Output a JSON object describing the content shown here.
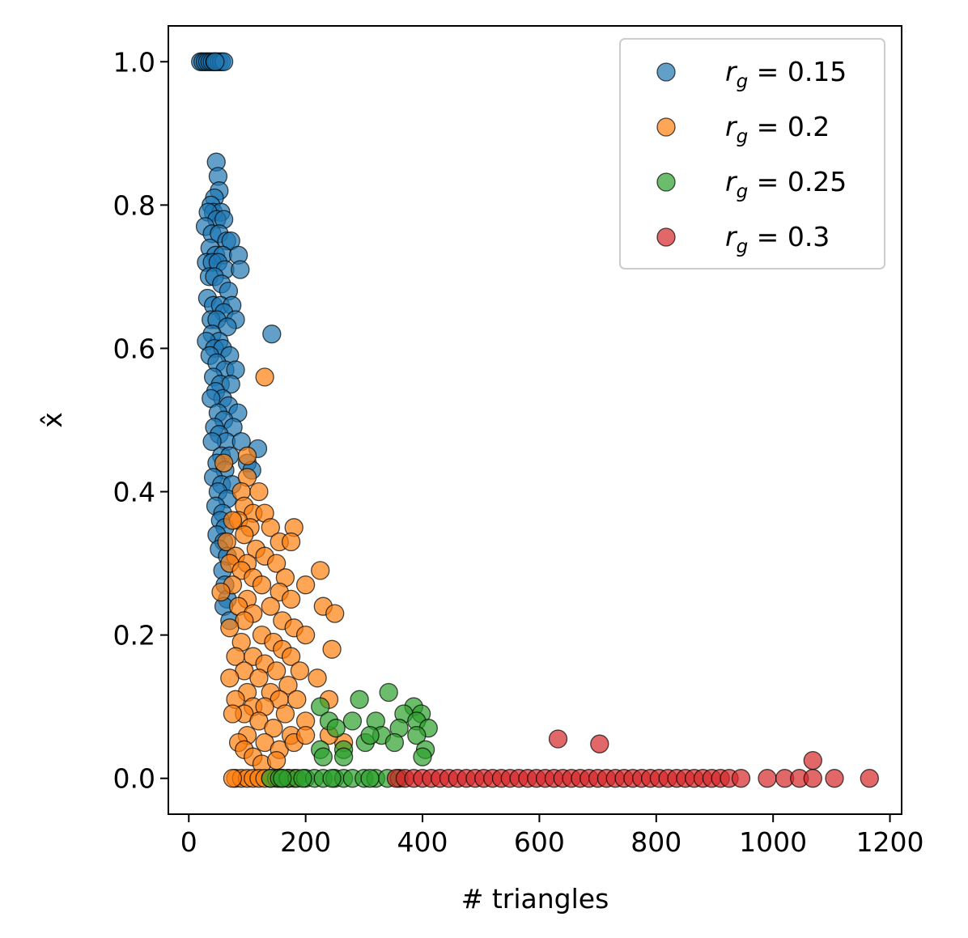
{
  "chart_data": {
    "type": "scatter",
    "xlabel": "# triangles",
    "ylabel": "x̂",
    "xlim": [
      -35,
      1220
    ],
    "ylim": [
      -0.05,
      1.05
    ],
    "xticks": [
      "0",
      "200",
      "400",
      "600",
      "800",
      "1000",
      "1200"
    ],
    "yticks": [
      "0.0",
      "0.2",
      "0.4",
      "0.6",
      "0.8",
      "1.0"
    ],
    "grid": false,
    "legend_position": "top-right",
    "series": [
      {
        "name": "r_g = 0.15",
        "label_parts": {
          "var": "r",
          "sub": "g",
          "rest": " = 0.15"
        },
        "color": "#1f77b4",
        "points": [
          [
            20,
            1.0
          ],
          [
            24,
            1.0
          ],
          [
            28,
            1.0
          ],
          [
            32,
            1.0
          ],
          [
            36,
            1.0
          ],
          [
            40,
            1.0
          ],
          [
            44,
            1.0
          ],
          [
            48,
            1.0
          ],
          [
            52,
            1.0
          ],
          [
            56,
            1.0
          ],
          [
            60,
            1.0
          ],
          [
            45,
            1.0
          ],
          [
            47,
            0.86
          ],
          [
            50,
            0.84
          ],
          [
            52,
            0.82
          ],
          [
            44,
            0.81
          ],
          [
            38,
            0.8
          ],
          [
            42,
            0.79
          ],
          [
            55,
            0.79
          ],
          [
            33,
            0.79
          ],
          [
            48,
            0.78
          ],
          [
            60,
            0.78
          ],
          [
            28,
            0.77
          ],
          [
            40,
            0.76
          ],
          [
            52,
            0.76
          ],
          [
            65,
            0.75
          ],
          [
            72,
            0.75
          ],
          [
            36,
            0.74
          ],
          [
            46,
            0.73
          ],
          [
            58,
            0.73
          ],
          [
            85,
            0.73
          ],
          [
            30,
            0.72
          ],
          [
            40,
            0.72
          ],
          [
            50,
            0.72
          ],
          [
            62,
            0.71
          ],
          [
            88,
            0.71
          ],
          [
            35,
            0.7
          ],
          [
            44,
            0.7
          ],
          [
            56,
            0.69
          ],
          [
            68,
            0.68
          ],
          [
            32,
            0.67
          ],
          [
            42,
            0.66
          ],
          [
            54,
            0.66
          ],
          [
            74,
            0.66
          ],
          [
            60,
            0.65
          ],
          [
            38,
            0.64
          ],
          [
            48,
            0.64
          ],
          [
            80,
            0.64
          ],
          [
            66,
            0.63
          ],
          [
            40,
            0.62
          ],
          [
            52,
            0.61
          ],
          [
            142,
            0.62
          ],
          [
            30,
            0.61
          ],
          [
            44,
            0.6
          ],
          [
            58,
            0.6
          ],
          [
            70,
            0.59
          ],
          [
            36,
            0.59
          ],
          [
            48,
            0.58
          ],
          [
            62,
            0.57
          ],
          [
            80,
            0.57
          ],
          [
            42,
            0.56
          ],
          [
            54,
            0.55
          ],
          [
            72,
            0.55
          ],
          [
            46,
            0.54
          ],
          [
            58,
            0.53
          ],
          [
            38,
            0.53
          ],
          [
            68,
            0.52
          ],
          [
            50,
            0.51
          ],
          [
            84,
            0.51
          ],
          [
            60,
            0.5
          ],
          [
            44,
            0.49
          ],
          [
            76,
            0.49
          ],
          [
            52,
            0.48
          ],
          [
            64,
            0.47
          ],
          [
            40,
            0.47
          ],
          [
            90,
            0.47
          ],
          [
            118,
            0.46
          ],
          [
            56,
            0.45
          ],
          [
            70,
            0.45
          ],
          [
            100,
            0.44
          ],
          [
            48,
            0.44
          ],
          [
            62,
            0.43
          ],
          [
            108,
            0.43
          ],
          [
            42,
            0.42
          ],
          [
            56,
            0.41
          ],
          [
            74,
            0.41
          ],
          [
            50,
            0.4
          ],
          [
            66,
            0.39
          ],
          [
            46,
            0.38
          ],
          [
            58,
            0.37
          ],
          [
            54,
            0.36
          ],
          [
            62,
            0.35
          ],
          [
            48,
            0.34
          ],
          [
            60,
            0.33
          ],
          [
            52,
            0.32
          ],
          [
            66,
            0.31
          ],
          [
            58,
            0.29
          ],
          [
            62,
            0.27
          ],
          [
            66,
            0.25
          ],
          [
            60,
            0.24
          ],
          [
            70,
            0.22
          ]
        ]
      },
      {
        "name": "r_g = 0.2",
        "label_parts": {
          "var": "r",
          "sub": "g",
          "rest": " = 0.2"
        },
        "color": "#ff7f0e",
        "points": [
          [
            130,
            0.56
          ],
          [
            100,
            0.45
          ],
          [
            60,
            0.44
          ],
          [
            100,
            0.42
          ],
          [
            90,
            0.4
          ],
          [
            120,
            0.4
          ],
          [
            95,
            0.38
          ],
          [
            110,
            0.37
          ],
          [
            130,
            0.37
          ],
          [
            85,
            0.36
          ],
          [
            75,
            0.36
          ],
          [
            105,
            0.35
          ],
          [
            140,
            0.35
          ],
          [
            180,
            0.35
          ],
          [
            65,
            0.33
          ],
          [
            95,
            0.34
          ],
          [
            155,
            0.33
          ],
          [
            175,
            0.33
          ],
          [
            115,
            0.32
          ],
          [
            80,
            0.31
          ],
          [
            130,
            0.31
          ],
          [
            100,
            0.3
          ],
          [
            70,
            0.3
          ],
          [
            150,
            0.3
          ],
          [
            90,
            0.29
          ],
          [
            110,
            0.28
          ],
          [
            165,
            0.28
          ],
          [
            225,
            0.29
          ],
          [
            200,
            0.27
          ],
          [
            75,
            0.27
          ],
          [
            125,
            0.27
          ],
          [
            155,
            0.26
          ],
          [
            55,
            0.26
          ],
          [
            100,
            0.25
          ],
          [
            175,
            0.25
          ],
          [
            85,
            0.24
          ],
          [
            140,
            0.24
          ],
          [
            230,
            0.24
          ],
          [
            110,
            0.23
          ],
          [
            95,
            0.22
          ],
          [
            160,
            0.22
          ],
          [
            250,
            0.23
          ],
          [
            70,
            0.21
          ],
          [
            125,
            0.2
          ],
          [
            180,
            0.21
          ],
          [
            200,
            0.2
          ],
          [
            90,
            0.19
          ],
          [
            145,
            0.19
          ],
          [
            160,
            0.18
          ],
          [
            80,
            0.17
          ],
          [
            110,
            0.17
          ],
          [
            175,
            0.17
          ],
          [
            245,
            0.18
          ],
          [
            130,
            0.16
          ],
          [
            95,
            0.15
          ],
          [
            150,
            0.15
          ],
          [
            190,
            0.15
          ],
          [
            220,
            0.14
          ],
          [
            70,
            0.14
          ],
          [
            120,
            0.14
          ],
          [
            170,
            0.13
          ],
          [
            100,
            0.12
          ],
          [
            140,
            0.12
          ],
          [
            80,
            0.11
          ],
          [
            155,
            0.11
          ],
          [
            185,
            0.11
          ],
          [
            240,
            0.11
          ],
          [
            110,
            0.1
          ],
          [
            130,
            0.1
          ],
          [
            95,
            0.09
          ],
          [
            165,
            0.09
          ],
          [
            200,
            0.08
          ],
          [
            75,
            0.09
          ],
          [
            120,
            0.08
          ],
          [
            145,
            0.07
          ],
          [
            100,
            0.06
          ],
          [
            175,
            0.06
          ],
          [
            85,
            0.05
          ],
          [
            130,
            0.05
          ],
          [
            155,
            0.04
          ],
          [
            95,
            0.04
          ],
          [
            110,
            0.03
          ],
          [
            125,
            0.02
          ],
          [
            150,
            0.025
          ],
          [
            180,
            0.05
          ],
          [
            200,
            0.06
          ],
          [
            265,
            0.05
          ],
          [
            240,
            0.06
          ],
          [
            80,
            0.0
          ],
          [
            90,
            0.0
          ],
          [
            100,
            0.0
          ],
          [
            110,
            0.0
          ],
          [
            120,
            0.0
          ],
          [
            130,
            0.0
          ],
          [
            140,
            0.0
          ],
          [
            150,
            0.0
          ],
          [
            160,
            0.0
          ],
          [
            75,
            0.0
          ],
          [
            170,
            0.0
          ],
          [
            180,
            0.0
          ]
        ]
      },
      {
        "name": "r_g = 0.25",
        "label_parts": {
          "var": "r",
          "sub": "g",
          "rest": " = 0.25"
        },
        "color": "#2ca02c",
        "points": [
          [
            342,
            0.12
          ],
          [
            292,
            0.11
          ],
          [
            385,
            0.1
          ],
          [
            368,
            0.09
          ],
          [
            398,
            0.09
          ],
          [
            225,
            0.1
          ],
          [
            390,
            0.08
          ],
          [
            280,
            0.08
          ],
          [
            320,
            0.08
          ],
          [
            240,
            0.08
          ],
          [
            360,
            0.07
          ],
          [
            410,
            0.07
          ],
          [
            252,
            0.07
          ],
          [
            330,
            0.06
          ],
          [
            390,
            0.06
          ],
          [
            302,
            0.05
          ],
          [
            225,
            0.04
          ],
          [
            352,
            0.05
          ],
          [
            265,
            0.04
          ],
          [
            405,
            0.04
          ],
          [
            230,
            0.03
          ],
          [
            310,
            0.06
          ],
          [
            265,
            0.03
          ],
          [
            400,
            0.03
          ],
          [
            140,
            0.0
          ],
          [
            155,
            0.0
          ],
          [
            170,
            0.0
          ],
          [
            185,
            0.0
          ],
          [
            200,
            0.0
          ],
          [
            215,
            0.0
          ],
          [
            230,
            0.0
          ],
          [
            250,
            0.0
          ],
          [
            265,
            0.0
          ],
          [
            280,
            0.0
          ],
          [
            300,
            0.0
          ],
          [
            320,
            0.0
          ],
          [
            340,
            0.0
          ],
          [
            360,
            0.0
          ],
          [
            160,
            0.0
          ],
          [
            195,
            0.0
          ],
          [
            245,
            0.0
          ],
          [
            310,
            0.0
          ]
        ]
      },
      {
        "name": "r_g = 0.3",
        "label_parts": {
          "var": "r",
          "sub": "g",
          "rest": " = 0.3"
        },
        "color": "#d62728",
        "points": [
          [
            632,
            0.055
          ],
          [
            703,
            0.048
          ],
          [
            1068,
            0.025
          ],
          [
            355,
            0.0
          ],
          [
            370,
            0.0
          ],
          [
            385,
            0.0
          ],
          [
            400,
            0.0
          ],
          [
            415,
            0.0
          ],
          [
            430,
            0.0
          ],
          [
            445,
            0.0
          ],
          [
            460,
            0.0
          ],
          [
            475,
            0.0
          ],
          [
            490,
            0.0
          ],
          [
            505,
            0.0
          ],
          [
            520,
            0.0
          ],
          [
            535,
            0.0
          ],
          [
            550,
            0.0
          ],
          [
            565,
            0.0
          ],
          [
            580,
            0.0
          ],
          [
            595,
            0.0
          ],
          [
            610,
            0.0
          ],
          [
            625,
            0.0
          ],
          [
            640,
            0.0
          ],
          [
            655,
            0.0
          ],
          [
            670,
            0.0
          ],
          [
            685,
            0.0
          ],
          [
            700,
            0.0
          ],
          [
            715,
            0.0
          ],
          [
            730,
            0.0
          ],
          [
            745,
            0.0
          ],
          [
            760,
            0.0
          ],
          [
            775,
            0.0
          ],
          [
            790,
            0.0
          ],
          [
            805,
            0.0
          ],
          [
            820,
            0.0
          ],
          [
            835,
            0.0
          ],
          [
            850,
            0.0
          ],
          [
            865,
            0.0
          ],
          [
            880,
            0.0
          ],
          [
            895,
            0.0
          ],
          [
            910,
            0.0
          ],
          [
            925,
            0.0
          ],
          [
            945,
            0.0
          ],
          [
            990,
            0.0
          ],
          [
            1020,
            0.0
          ],
          [
            1045,
            0.0
          ],
          [
            1068,
            0.0
          ],
          [
            1105,
            0.0
          ],
          [
            1165,
            0.0
          ]
        ]
      }
    ]
  }
}
